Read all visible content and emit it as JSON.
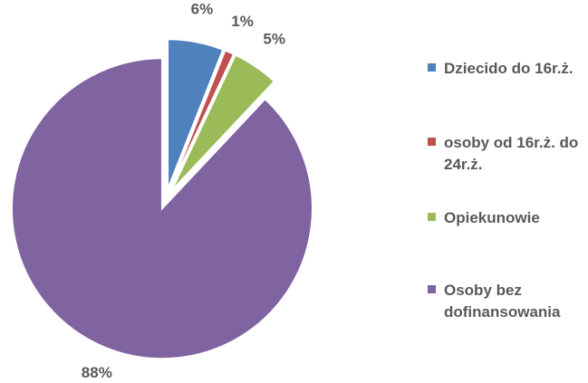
{
  "chart_data": {
    "type": "pie",
    "categories": [
      "Dziecido do 16r.ż.",
      "osoby od 16r.ż. do 24r.ż.",
      "Opiekunowie",
      "Osoby bez dofinansowania"
    ],
    "values": [
      6,
      1,
      5,
      88
    ],
    "value_labels": [
      "6%",
      "1%",
      "5%",
      "88%"
    ],
    "colors": [
      "#4f81bd",
      "#c0504d",
      "#9bbb59",
      "#8064a2"
    ],
    "exploded": true,
    "legend": "right"
  }
}
